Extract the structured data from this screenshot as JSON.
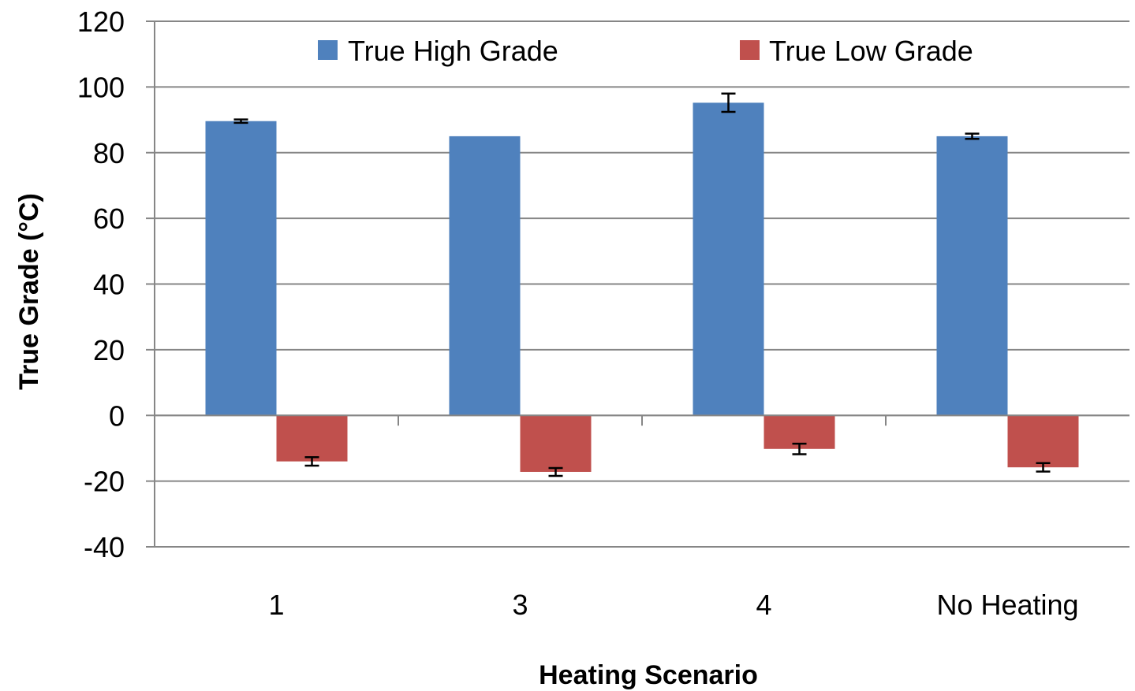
{
  "chart_data": {
    "type": "bar",
    "title": "",
    "xlabel": "Heating Scenario",
    "ylabel": "True Grade (°C)",
    "categories": [
      "1",
      "3",
      "4",
      "No Heating"
    ],
    "series": [
      {
        "name": "True High Grade",
        "color": "#4F81BD",
        "values": [
          89.6,
          85.0,
          95.2,
          85.0
        ],
        "error": [
          0.5,
          0,
          2.8,
          0.8
        ]
      },
      {
        "name": "True Low Grade",
        "color": "#C0504D",
        "values": [
          -14.0,
          -17.2,
          -10.2,
          -15.8
        ],
        "error": [
          1.3,
          1.2,
          1.6,
          1.3
        ]
      }
    ],
    "ylim": [
      -40,
      120
    ],
    "yticks": [
      -40,
      -20,
      0,
      20,
      40,
      60,
      80,
      100,
      120
    ],
    "grid": true,
    "legend_position": "top"
  }
}
